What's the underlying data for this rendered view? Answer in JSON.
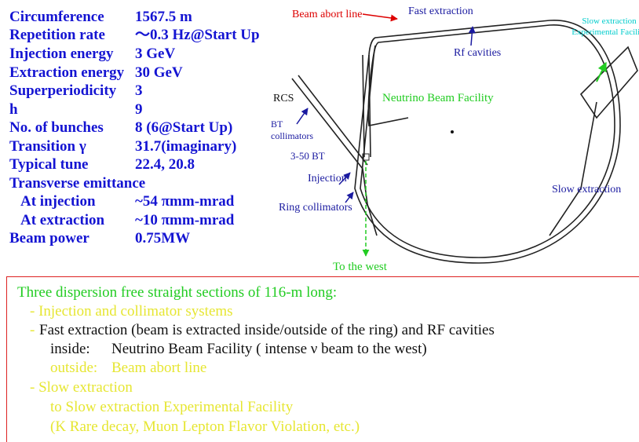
{
  "parameters": [
    {
      "label": "Circumference",
      "value": "1567.5 m"
    },
    {
      "label": "Repetition rate",
      "value": "～0.3 Hz@Start Up"
    },
    {
      "label": "Injection energy",
      "value": "3 GeV"
    },
    {
      "label": "Extraction energy",
      "value": "30 GeV"
    },
    {
      "label": "Superperiodicity",
      "value": "3"
    },
    {
      "label": "h",
      "value": "9"
    },
    {
      "label": "No. of bunches",
      "value": "8  (6@Start Up)"
    },
    {
      "label": "Transition γ",
      "value": "31.7(imaginary)"
    },
    {
      "label": "Typical tune",
      "value": "22.4, 20.8"
    },
    {
      "label": "Transverse emittance",
      "value": null
    },
    {
      "label": "At injection",
      "value": "~54 πmm-mrad"
    },
    {
      "label": "At extraction",
      "value": "~10  πmm-mrad"
    },
    {
      "label": "Beam power",
      "value": "0.75MW"
    }
  ],
  "diagram": {
    "beam_abort": "Beam abort line",
    "fast_extraction": "Fast extraction",
    "rf_cavities": "Rf cavities",
    "slow_facility": [
      "Slow extraction",
      "Experimental Facility"
    ],
    "neutrino": "Neutrino Beam Facility",
    "rcs": "RCS",
    "bt_collimators": [
      "BT",
      "collimators"
    ],
    "bt350": "3-50 BT",
    "injection": "Injection",
    "ring_collimators": "Ring collimators",
    "slow_extraction": "Slow extraction",
    "west": "To the west"
  },
  "notes": {
    "heading": "Three dispersion free straight sections of 116-m long:",
    "item1": "- Injection and collimator systems",
    "item2_bullet": "-",
    "item2": "Fast extraction (beam is extracted inside/outside of the ring) and RF cavities",
    "inside_label": "inside:",
    "inside_text": "Neutrino Beam Facility ( intense ν beam to the west)",
    "outside_label": "outside:",
    "outside_text": "Beam abort line",
    "item3": "- Slow extraction",
    "item3_a": "to Slow extraction Experimental Facility",
    "item3_b": "(K Rare decay, Muon Lepton Flavor Violation, etc.)"
  }
}
